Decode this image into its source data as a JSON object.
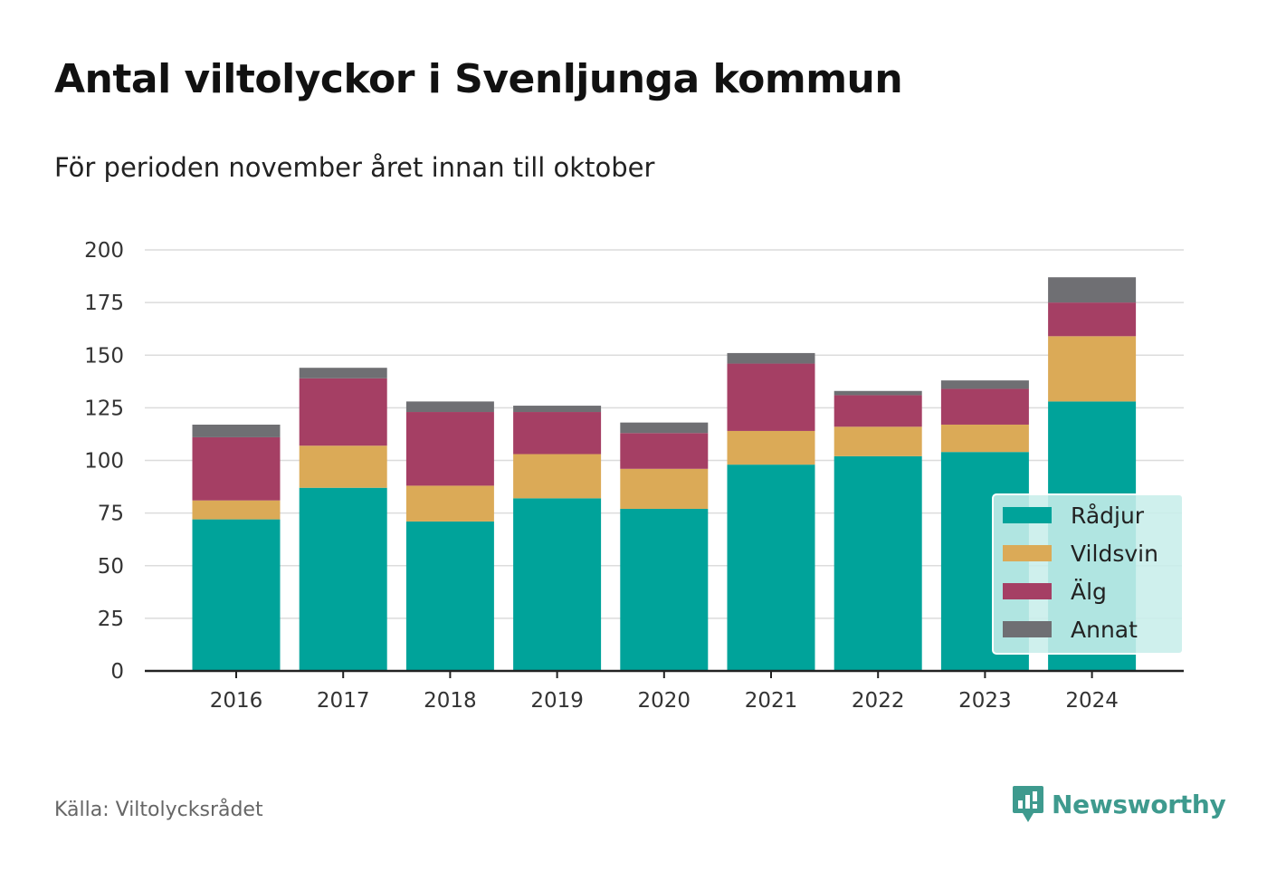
{
  "header": {
    "title": "Antal viltolyckor i Svenljunga kommun",
    "subtitle": "För perioden november året innan till oktober"
  },
  "footer": {
    "source": "Källa: Viltolycksrådet",
    "brand": "Newsworthy",
    "brand_icon": "newsworthy-logo-icon",
    "brand_color": "#3e9a8e"
  },
  "chart_data": {
    "type": "bar",
    "stacked": true,
    "categories": [
      "2016",
      "2017",
      "2018",
      "2019",
      "2020",
      "2021",
      "2022",
      "2023",
      "2024"
    ],
    "series": [
      {
        "name": "Rådjur",
        "color": "#00a39a",
        "values": [
          72,
          87,
          71,
          82,
          77,
          98,
          102,
          104,
          128
        ]
      },
      {
        "name": "Vildsvin",
        "color": "#dbaa57",
        "values": [
          9,
          20,
          17,
          21,
          19,
          16,
          14,
          13,
          31
        ]
      },
      {
        "name": "Älg",
        "color": "#a53f64",
        "values": [
          30,
          32,
          35,
          20,
          17,
          32,
          15,
          17,
          16
        ]
      },
      {
        "name": "Annat",
        "color": "#6f6f73",
        "values": [
          6,
          5,
          5,
          3,
          5,
          5,
          2,
          4,
          12
        ]
      }
    ],
    "yticks": [
      0,
      25,
      50,
      75,
      100,
      125,
      150,
      175,
      200
    ],
    "ylim": [
      0,
      200
    ],
    "grid": true,
    "legend": "bottom-right",
    "xlabel": "",
    "ylabel": ""
  }
}
